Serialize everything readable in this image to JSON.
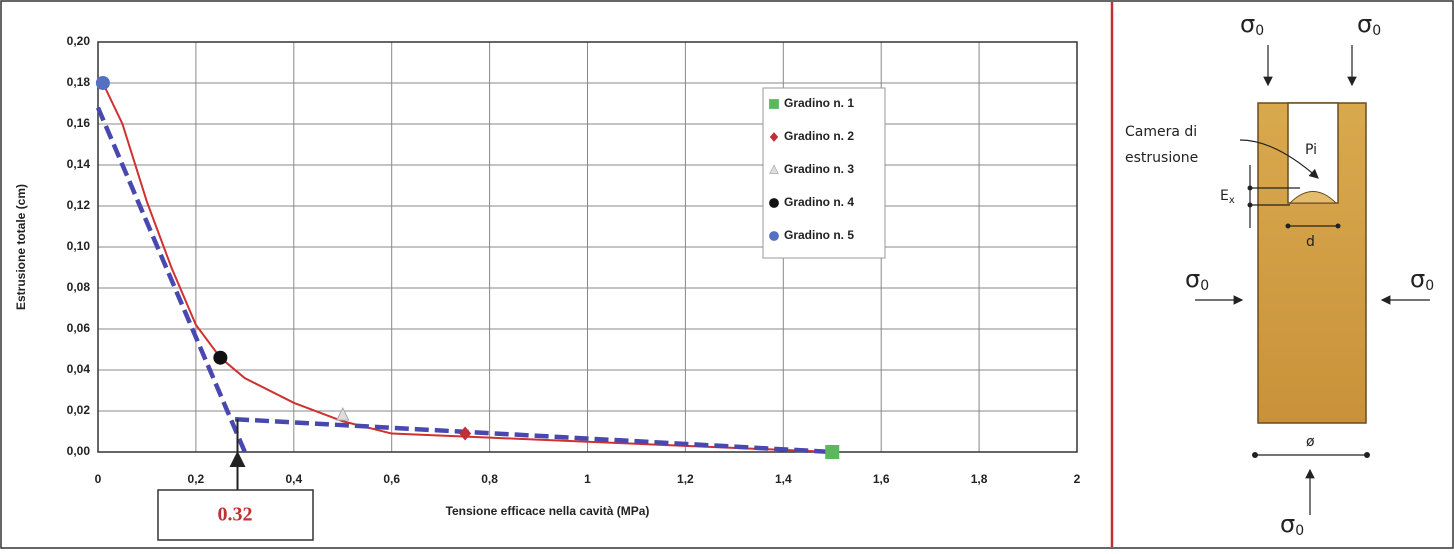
{
  "chart_data": {
    "type": "scatter",
    "x_label": "Tensione efficace nella cavità (MPa)",
    "y_label": "Estrusione totale (cm)",
    "xlim": [
      0,
      2
    ],
    "xticks": [
      0,
      {
        "value": 0.2,
        "label": "0,2"
      },
      {
        "value": 0.4,
        "label": "0,4"
      },
      {
        "value": 0.6,
        "label": "0,6"
      },
      {
        "value": 0.8,
        "label": "0,8"
      },
      1,
      {
        "value": 1.2,
        "label": "1,2"
      },
      {
        "value": 1.4,
        "label": "1,4"
      },
      {
        "value": 1.6,
        "label": "1,6"
      },
      {
        "value": 1.8,
        "label": "1,8"
      },
      2
    ],
    "ylim": [
      0,
      0.2
    ],
    "yticks": [
      {
        "value": 0,
        "label": "0,00"
      },
      {
        "value": 0.02,
        "label": "0,02"
      },
      {
        "value": 0.04,
        "label": "0,04"
      },
      {
        "value": 0.06,
        "label": "0,06"
      },
      {
        "value": 0.08,
        "label": "0,08"
      },
      {
        "value": 0.1,
        "label": "0,10"
      },
      {
        "value": 0.12,
        "label": "0,12"
      },
      {
        "value": 0.14,
        "label": "0,14"
      },
      {
        "value": 0.16,
        "label": "0,16"
      },
      {
        "value": 0.18,
        "label": "0,18"
      },
      {
        "value": 0.2,
        "label": "0,20"
      }
    ],
    "grid": true,
    "series": [
      {
        "name": "Gradino n. 1",
        "color": "#5cb85c",
        "marker": "square",
        "x": [
          1.5
        ],
        "values": [
          0.0
        ]
      },
      {
        "name": "Gradino n. 2",
        "color": "#c0303a",
        "marker": "diamond",
        "x": [
          0.75
        ],
        "values": [
          0.009
        ]
      },
      {
        "name": "Gradino n. 3",
        "color": "#a8a8a8",
        "marker": "triangle",
        "x": [
          0.5
        ],
        "values": [
          0.018
        ]
      },
      {
        "name": "Gradino n. 4",
        "color": "#111111",
        "marker": "circle",
        "x": [
          0.25
        ],
        "values": [
          0.046
        ]
      },
      {
        "name": "Gradino n. 5",
        "color": "#5570c0",
        "marker": "circle",
        "x": [
          0.01
        ],
        "values": [
          0.18
        ]
      }
    ],
    "fit_curve": {
      "color": "#d03030",
      "x": [
        0.01,
        0.05,
        0.1,
        0.15,
        0.2,
        0.25,
        0.3,
        0.4,
        0.5,
        0.6,
        0.8,
        1.0,
        1.2,
        1.5
      ],
      "values": [
        0.18,
        0.16,
        0.122,
        0.09,
        0.062,
        0.046,
        0.036,
        0.024,
        0.015,
        0.009,
        0.007,
        0.005,
        0.003,
        0.0
      ]
    },
    "trend_lines": [
      {
        "color": "#4848b0",
        "x": [
          0,
          0.3
        ],
        "values": [
          0.168,
          0.0
        ]
      },
      {
        "color": "#4848b0",
        "x": [
          0.28,
          1.5
        ],
        "values": [
          0.016,
          0.0
        ]
      }
    ],
    "annotation": {
      "text": "0.32",
      "x": 0.285
    }
  },
  "diagram": {
    "sigma": {
      "symbol": "σ",
      "sub": "0"
    },
    "camera": [
      "Camera di",
      "estrusione"
    ],
    "pi": "Pi",
    "ex": {
      "symbol": "E",
      "sub": "x"
    },
    "d": "d",
    "phi": "ø"
  }
}
